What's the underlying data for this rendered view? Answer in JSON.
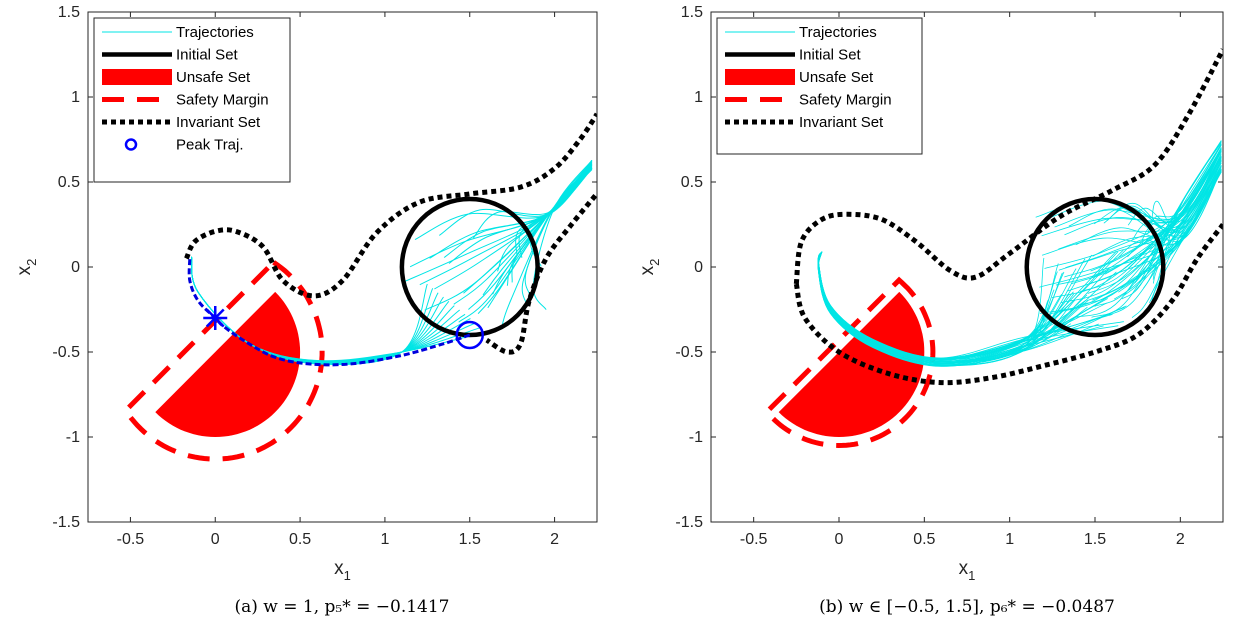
{
  "chart_data": [
    {
      "type": "line",
      "caption": "(a) w = 1,  p₅* = −0.1417",
      "xlabel": "x1",
      "ylabel": "x2",
      "xlim": [
        -0.75,
        2.25
      ],
      "ylim": [
        -1.5,
        1.5
      ],
      "xticks": [
        -0.5,
        0,
        0.5,
        1,
        1.5,
        2
      ],
      "yticks": [
        -1.5,
        -1,
        -0.5,
        0,
        0.5,
        1,
        1.5
      ],
      "xtick_labels": [
        "-0.5",
        "0",
        "0.5",
        "1",
        "1.5",
        "2"
      ],
      "ytick_labels": [
        "-1.5",
        "-1",
        "-0.5",
        "0",
        "0.5",
        "1",
        "1.5"
      ],
      "grid": false,
      "legend_position": "top-left",
      "legend": [
        "Trajectories",
        "Initial Set",
        "Unsafe Set",
        "Safety Margin",
        "Invariant Set",
        "Peak Traj."
      ],
      "initial_set": {
        "center": [
          1.5,
          0
        ],
        "radius": 0.4
      },
      "unsafe_set": {
        "center": [
          0,
          -0.5
        ],
        "radius": 0.5,
        "cut_normal": [
          -1,
          1
        ]
      },
      "safety_margin": {
        "center": [
          0,
          -0.5
        ],
        "radius": 0.63,
        "cut_offset": 0.13
      },
      "invariant_set": {
        "upper": [
          [
            -0.17,
            0.05
          ],
          [
            -0.12,
            0.15
          ],
          [
            0.0,
            0.21
          ],
          [
            0.12,
            0.21
          ],
          [
            0.28,
            0.12
          ],
          [
            0.4,
            -0.08
          ],
          [
            0.58,
            -0.17
          ],
          [
            0.75,
            -0.08
          ],
          [
            0.95,
            0.2
          ],
          [
            1.2,
            0.38
          ],
          [
            1.5,
            0.43
          ],
          [
            1.8,
            0.47
          ],
          [
            2.0,
            0.58
          ],
          [
            2.15,
            0.75
          ],
          [
            2.25,
            0.9
          ]
        ],
        "lower": [
          [
            2.24,
            0.42
          ],
          [
            2.1,
            0.25
          ],
          [
            1.95,
            0.05
          ],
          [
            1.85,
            -0.2
          ],
          [
            1.8,
            -0.45
          ],
          [
            1.72,
            -0.5
          ],
          [
            1.6,
            -0.43
          ]
        ]
      },
      "peak_trajectory": [
        [
          1.5,
          -0.4
        ],
        [
          1.35,
          -0.45
        ],
        [
          1.1,
          -0.52
        ],
        [
          0.8,
          -0.57
        ],
        [
          0.55,
          -0.57
        ],
        [
          0.35,
          -0.53
        ],
        [
          0.18,
          -0.44
        ],
        [
          0.05,
          -0.35
        ],
        [
          0.0,
          -0.3
        ],
        [
          -0.1,
          -0.2
        ],
        [
          -0.15,
          -0.08
        ],
        [
          -0.15,
          0.05
        ]
      ],
      "peak_start": [
        1.5,
        -0.4
      ],
      "peak_point": [
        0,
        -0.3
      ],
      "trajectories": {
        "color": "#00e5e5",
        "count": 30,
        "region": "initial set to upper right",
        "lower_end": [
          2.24,
          0.63
        ]
      }
    },
    {
      "type": "line",
      "caption": "(b) w ∈ [−0.5, 1.5],  p₆* = −0.0487",
      "xlabel": "x1",
      "ylabel": "x2",
      "xlim": [
        -0.75,
        2.25
      ],
      "ylim": [
        -1.5,
        1.5
      ],
      "xticks": [
        -0.5,
        0,
        0.5,
        1,
        1.5,
        2
      ],
      "yticks": [
        -1.5,
        -1,
        -0.5,
        0,
        0.5,
        1,
        1.5
      ],
      "xtick_labels": [
        "-0.5",
        "0",
        "0.5",
        "1",
        "1.5",
        "2"
      ],
      "ytick_labels": [
        "-1.5",
        "-1",
        "-0.5",
        "0",
        "0.5",
        "1",
        "1.5"
      ],
      "grid": false,
      "legend_position": "top-left",
      "legend": [
        "Trajectories",
        "Initial Set",
        "Unsafe Set",
        "Safety Margin",
        "Invariant Set"
      ],
      "initial_set": {
        "center": [
          1.5,
          0
        ],
        "radius": 0.4
      },
      "unsafe_set": {
        "center": [
          0,
          -0.5
        ],
        "radius": 0.5,
        "cut_normal": [
          -1,
          1
        ]
      },
      "safety_margin": {
        "center": [
          0,
          -0.5
        ],
        "radius": 0.55,
        "cut_offset": 0.05
      },
      "invariant_set": {
        "upper": [
          [
            -0.25,
            -0.1
          ],
          [
            -0.22,
            0.15
          ],
          [
            -0.1,
            0.28
          ],
          [
            0.05,
            0.31
          ],
          [
            0.25,
            0.28
          ],
          [
            0.45,
            0.15
          ],
          [
            0.65,
            -0.02
          ],
          [
            0.8,
            -0.06
          ],
          [
            1.0,
            0.08
          ],
          [
            1.3,
            0.3
          ],
          [
            1.6,
            0.45
          ],
          [
            1.85,
            0.6
          ],
          [
            2.05,
            0.9
          ],
          [
            2.25,
            1.28
          ]
        ],
        "lower": [
          [
            -0.25,
            -0.1
          ],
          [
            -0.2,
            -0.3
          ],
          [
            0.0,
            -0.5
          ],
          [
            0.3,
            -0.63
          ],
          [
            0.6,
            -0.68
          ],
          [
            0.9,
            -0.65
          ],
          [
            1.2,
            -0.58
          ],
          [
            1.5,
            -0.5
          ],
          [
            1.75,
            -0.4
          ],
          [
            1.95,
            -0.2
          ],
          [
            2.1,
            0.05
          ],
          [
            2.25,
            0.25
          ]
        ]
      },
      "trajectories": {
        "color": "#00e5e5",
        "count": 60,
        "region": "initial set through band to upper right"
      }
    }
  ]
}
